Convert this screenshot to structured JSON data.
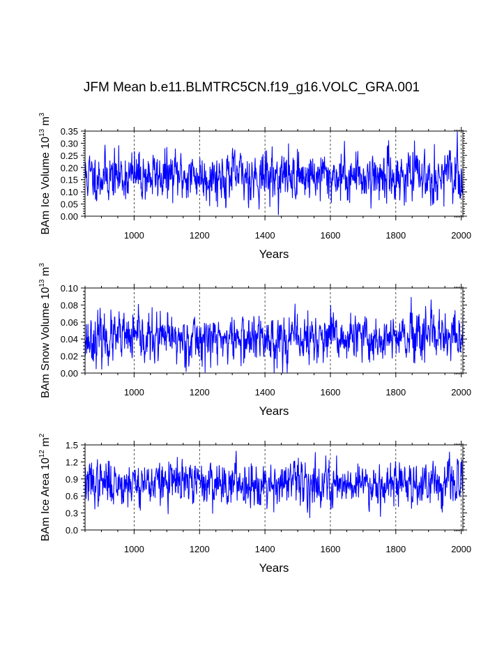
{
  "figure_title": "JFM Mean b.e11.BLMTRC5CN.f19_g16.VOLC_GRA.001",
  "chart_data": [
    {
      "type": "line",
      "xlabel": "Years",
      "ylabel": {
        "prefix": "BAm Ice Volume 10",
        "exp": "13",
        "unit": " m",
        "unit_exp": "3"
      },
      "xlim": [
        850,
        2005
      ],
      "ylim": [
        0.0,
        0.35
      ],
      "xticks": [
        1000,
        1200,
        1400,
        1600,
        1800,
        2000
      ],
      "yticks": [
        0.0,
        0.05,
        0.1,
        0.15,
        0.2,
        0.25,
        0.3,
        0.35
      ],
      "ytick_labels": [
        "0.00",
        "0.05",
        "0.10",
        "0.15",
        "0.20",
        "0.25",
        "0.30",
        "0.35"
      ],
      "series": [
        {
          "name": "BAm Ice Volume",
          "color": "#0000ff",
          "generator": {
            "mean": 0.165,
            "amp": 0.05,
            "seed": 11
          }
        }
      ]
    },
    {
      "type": "line",
      "xlabel": "Years",
      "ylabel": {
        "prefix": "BAm Snow Volume 10",
        "exp": "13",
        "unit": " m",
        "unit_exp": "3"
      },
      "xlim": [
        850,
        2005
      ],
      "ylim": [
        0.0,
        0.1
      ],
      "xticks": [
        1000,
        1200,
        1400,
        1600,
        1800,
        2000
      ],
      "yticks": [
        0.0,
        0.02,
        0.04,
        0.06,
        0.08,
        0.1
      ],
      "ytick_labels": [
        "0.00",
        "0.02",
        "0.04",
        "0.06",
        "0.08",
        "0.10"
      ],
      "series": [
        {
          "name": "BAm Snow Volume",
          "color": "#0000ff",
          "generator": {
            "mean": 0.04,
            "amp": 0.014,
            "seed": 23
          }
        }
      ]
    },
    {
      "type": "line",
      "xlabel": "Years",
      "ylabel": {
        "prefix": "BAm Ice Area 10",
        "exp": "12",
        "unit": " m",
        "unit_exp": "2"
      },
      "xlim": [
        850,
        2005
      ],
      "ylim": [
        0.0,
        1.5
      ],
      "xticks": [
        1000,
        1200,
        1400,
        1600,
        1800,
        2000
      ],
      "yticks": [
        0.0,
        0.3,
        0.6,
        0.9,
        1.2,
        1.5
      ],
      "ytick_labels": [
        "0.0",
        "0.3",
        "0.6",
        "0.9",
        "1.2",
        "1.5"
      ],
      "series": [
        {
          "name": "BAm Ice Area",
          "color": "#0000ff",
          "generator": {
            "mean": 0.83,
            "amp": 0.19,
            "seed": 37
          }
        }
      ]
    }
  ]
}
